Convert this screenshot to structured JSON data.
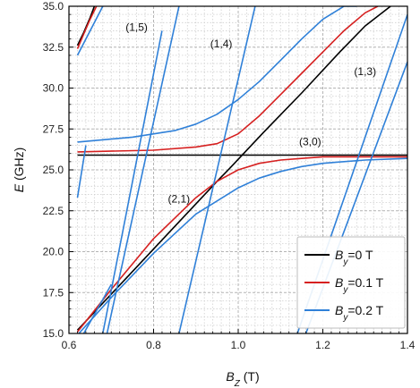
{
  "chart_data": {
    "type": "line",
    "xlabel": {
      "main": "B",
      "sub": "Z",
      "unit": " (T)"
    },
    "ylabel": {
      "main": "E",
      "unit": " (GHz)"
    },
    "xlim": [
      0.6,
      1.4
    ],
    "ylim": [
      15.0,
      35.0
    ],
    "xticks": [
      0.6,
      0.8,
      1.0,
      1.2,
      1.4
    ],
    "xtick_labels": [
      "0.6",
      "0.8",
      "1.0",
      "1.2",
      "1.4"
    ],
    "yticks": [
      15.0,
      17.5,
      20.0,
      22.5,
      25.0,
      27.5,
      30.0,
      32.5,
      35.0
    ],
    "ytick_labels": [
      "15.0",
      "17.5",
      "20.0",
      "22.5",
      "25.0",
      "27.5",
      "30.0",
      "32.5",
      "35.0"
    ],
    "grid": true,
    "legend_position": "lower-right",
    "series": [
      {
        "name": "By=0 T",
        "label_main": "B",
        "label_sub": "y",
        "label_rest": "=0 T",
        "color": "#000000",
        "lines": [
          {
            "x": [
              0.62,
              0.95,
              0.98,
              1.06,
              1.15,
              1.24,
              1.3,
              1.36
            ],
            "y": [
              15.2,
              24.3,
              25.1,
              27.3,
              29.7,
              32.2,
              33.8,
              35.0
            ]
          },
          {
            "x": [
              0.62,
              1.4
            ],
            "y": [
              25.9,
              25.9
            ]
          },
          {
            "x": [
              0.62,
              0.635,
              0.65,
              0.66
            ],
            "y": [
              32.6,
              33.4,
              34.3,
              35.0
            ]
          }
        ]
      },
      {
        "name": "By=0.1 T",
        "label_main": "B",
        "label_sub": "y",
        "label_rest": "=0.1 T",
        "color": "#d62020",
        "lines": [
          {
            "x": [
              0.62,
              0.7,
              0.8,
              0.9,
              0.95,
              1.0,
              1.05,
              1.1,
              1.15,
              1.2,
              1.3,
              1.4
            ],
            "y": [
              15.1,
              17.7,
              20.8,
              23.3,
              24.3,
              25.0,
              25.4,
              25.6,
              25.7,
              25.8,
              25.8,
              25.8
            ]
          },
          {
            "x": [
              0.62,
              0.8,
              0.9,
              0.95,
              1.0,
              1.05,
              1.1,
              1.15,
              1.2,
              1.25,
              1.3,
              1.33
            ],
            "y": [
              26.1,
              26.2,
              26.4,
              26.6,
              27.2,
              28.3,
              29.6,
              30.9,
              32.2,
              33.5,
              34.6,
              35.0
            ]
          },
          {
            "x": [
              0.62,
              0.635,
              0.65,
              0.665
            ],
            "y": [
              32.4,
              33.3,
              34.2,
              35.0
            ]
          }
        ]
      },
      {
        "name": "By=0.2 T",
        "label_main": "B",
        "label_sub": "y",
        "label_rest": "=0.2 T",
        "color": "#2f80d8",
        "lines": [
          {
            "x": [
              0.62,
              0.7,
              0.8,
              0.9,
              1.0,
              1.05,
              1.1,
              1.15,
              1.2,
              1.25,
              1.3,
              1.4
            ],
            "y": [
              14.9,
              17.2,
              19.9,
              22.3,
              23.9,
              24.5,
              24.9,
              25.2,
              25.4,
              25.5,
              25.6,
              25.7
            ]
          },
          {
            "x": [
              0.62,
              0.75,
              0.85,
              0.9,
              0.95,
              1.0,
              1.05,
              1.1,
              1.15,
              1.2,
              1.25,
              1.28
            ],
            "y": [
              26.7,
              27.0,
              27.4,
              27.8,
              28.4,
              29.3,
              30.4,
              31.7,
              33.0,
              34.2,
              35.0,
              35.0
            ]
          },
          {
            "x": [
              0.62,
              0.68
            ],
            "y": [
              32.0,
              35.0
            ]
          },
          {
            "x": [
              0.62,
              0.64
            ],
            "y": [
              23.3,
              26.5
            ]
          },
          {
            "x": [
              0.69,
              0.86
            ],
            "y": [
              15.0,
              35.0
            ]
          },
          {
            "x": [
              0.86,
              1.04
            ],
            "y": [
              15.0,
              35.0
            ]
          },
          {
            "x": [
              0.635,
              0.7
            ],
            "y": [
              15.0,
              18.0
            ]
          },
          {
            "x": [
              0.68,
              0.82
            ],
            "y": [
              15.0,
              33.5
            ]
          },
          {
            "x": [
              1.14,
              1.4
            ],
            "y": [
              15.0,
              34.5
            ]
          },
          {
            "x": [
              1.16,
              1.4
            ],
            "y": [
              15.0,
              31.6
            ]
          }
        ]
      }
    ],
    "annotations": [
      {
        "text": "(1,5)",
        "x": 0.76,
        "y": 33.5
      },
      {
        "text": "(1,4)",
        "x": 0.96,
        "y": 32.5
      },
      {
        "text": "(1,3)",
        "x": 1.3,
        "y": 30.8
      },
      {
        "text": "(3,0)",
        "x": 1.17,
        "y": 26.5
      },
      {
        "text": "(2,1)",
        "x": 0.86,
        "y": 23.0
      }
    ]
  }
}
